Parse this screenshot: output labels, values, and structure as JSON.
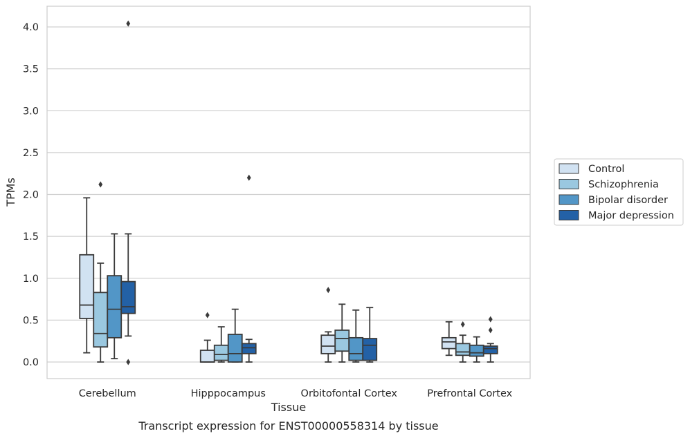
{
  "caption": "Transcript expression for ENST00000558314 by tissue",
  "chart_data": {
    "type": "box",
    "title": "",
    "xlabel": "Tissue",
    "ylabel": "TPMs",
    "ylim": [
      -0.2,
      4.25
    ],
    "yticks": [
      "0.0",
      "0.5",
      "1.0",
      "1.5",
      "2.0",
      "2.5",
      "3.0",
      "3.5",
      "4.0"
    ],
    "grid": "horizontal",
    "legend_position": "right",
    "categories": [
      "Cerebellum",
      "Hipppocampus",
      "Orbitofontal Cortex",
      "Prefrontal Cortex"
    ],
    "series": [
      {
        "name": "Control",
        "color": "#d1e2f2",
        "boxes": [
          {
            "whislo": 0.11,
            "q1": 0.52,
            "med": 0.68,
            "q3": 1.28,
            "whishi": 1.96,
            "fliers": []
          },
          {
            "whislo": 0.0,
            "q1": 0.0,
            "med": 0.0,
            "q3": 0.14,
            "whishi": 0.26,
            "fliers": [
              0.56
            ]
          },
          {
            "whislo": 0.0,
            "q1": 0.1,
            "med": 0.19,
            "q3": 0.32,
            "whishi": 0.36,
            "fliers": [
              0.86
            ]
          },
          {
            "whislo": 0.08,
            "q1": 0.16,
            "med": 0.24,
            "q3": 0.29,
            "whishi": 0.48,
            "fliers": []
          }
        ]
      },
      {
        "name": "Schizophrenia",
        "color": "#9ac8e0",
        "boxes": [
          {
            "whislo": 0.0,
            "q1": 0.18,
            "med": 0.34,
            "q3": 0.83,
            "whishi": 1.18,
            "fliers": [
              2.12
            ]
          },
          {
            "whislo": 0.0,
            "q1": 0.02,
            "med": 0.09,
            "q3": 0.2,
            "whishi": 0.42,
            "fliers": []
          },
          {
            "whislo": 0.0,
            "q1": 0.13,
            "med": 0.28,
            "q3": 0.38,
            "whishi": 0.69,
            "fliers": []
          },
          {
            "whislo": 0.0,
            "q1": 0.08,
            "med": 0.12,
            "q3": 0.22,
            "whishi": 0.32,
            "fliers": [
              0.45
            ]
          }
        ]
      },
      {
        "name": "Bipolar disorder",
        "color": "#5296c7",
        "boxes": [
          {
            "whislo": 0.04,
            "q1": 0.29,
            "med": 0.63,
            "q3": 1.03,
            "whishi": 1.53,
            "fliers": []
          },
          {
            "whislo": 0.0,
            "q1": 0.0,
            "med": 0.1,
            "q3": 0.33,
            "whishi": 0.63,
            "fliers": []
          },
          {
            "whislo": 0.0,
            "q1": 0.02,
            "med": 0.1,
            "q3": 0.29,
            "whishi": 0.62,
            "fliers": []
          },
          {
            "whislo": 0.0,
            "q1": 0.07,
            "med": 0.11,
            "q3": 0.2,
            "whishi": 0.3,
            "fliers": []
          }
        ]
      },
      {
        "name": "Major depression",
        "color": "#2361a6",
        "boxes": [
          {
            "whislo": 0.31,
            "q1": 0.58,
            "med": 0.66,
            "q3": 0.96,
            "whishi": 1.53,
            "fliers": [
              0.0,
              4.04
            ]
          },
          {
            "whislo": 0.0,
            "q1": 0.1,
            "med": 0.17,
            "q3": 0.22,
            "whishi": 0.27,
            "fliers": [
              2.2
            ]
          },
          {
            "whislo": 0.0,
            "q1": 0.02,
            "med": 0.2,
            "q3": 0.28,
            "whishi": 0.65,
            "fliers": []
          },
          {
            "whislo": 0.0,
            "q1": 0.1,
            "med": 0.16,
            "q3": 0.19,
            "whishi": 0.22,
            "fliers": [
              0.38,
              0.51
            ]
          }
        ]
      }
    ]
  }
}
